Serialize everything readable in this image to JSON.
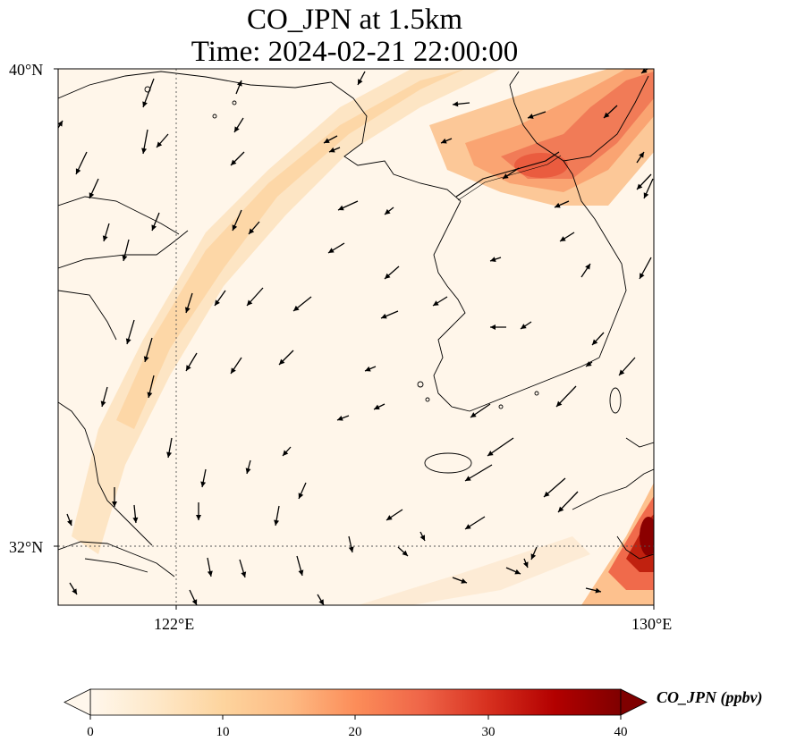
{
  "title_line1": "CO_JPN at 1.5km",
  "title_line2": "Time: 2024-02-21 22:00:00",
  "axes": {
    "lat_labels": [
      "40°N",
      "32°N"
    ],
    "lon_labels": [
      "122°E",
      "130°E"
    ],
    "lon_range": [
      120,
      130
    ],
    "lat_range": [
      31,
      40
    ],
    "gridlines": {
      "lon": 122,
      "lat": 32,
      "style": "dotted"
    }
  },
  "colorbar": {
    "label": "CO_JPN (ppbv)",
    "ticks": [
      "0",
      "10",
      "20",
      "30",
      "40"
    ],
    "min": 0,
    "max": 40,
    "extend": "both",
    "colormap": "OrRd",
    "colors": [
      "#fff7ec",
      "#fee8c8",
      "#fdd49e",
      "#fdbb84",
      "#fc8d59",
      "#ef6548",
      "#d7301f",
      "#b30000",
      "#7f0000"
    ]
  },
  "chart_data": {
    "type": "map",
    "field": "CO_JPN",
    "units": "ppbv",
    "level": "1.5km",
    "time": "2024-02-21 22:00:00",
    "features": [
      {
        "name": "high-co-northeast",
        "lon": 127.5,
        "lat": 38.7,
        "value": 22
      },
      {
        "name": "high-co-southeast-corner",
        "lon": 129.8,
        "lat": 32.2,
        "value": 40
      },
      {
        "name": "diagonal-plume",
        "lon": 123,
        "lat": 36,
        "value": 8
      }
    ]
  }
}
